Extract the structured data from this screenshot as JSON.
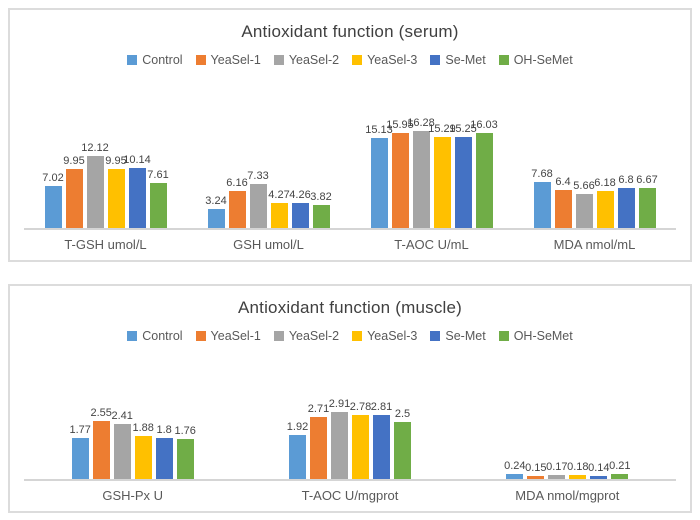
{
  "colors": {
    "series": [
      "#5B9BD5",
      "#ED7D31",
      "#A5A5A5",
      "#FFC000",
      "#4472C4",
      "#70AD47"
    ],
    "title_text": "#404040",
    "legend_text": "#595959",
    "axis_line": "#d5d5d5",
    "panel_border": "#dcdcdc"
  },
  "chart_data": [
    {
      "type": "bar",
      "title": "Antioxidant function (serum)",
      "categories": [
        "T-GSH umol/L",
        "GSH umol/L",
        "T-AOC U/mL",
        "MDA nmol/mL"
      ],
      "series": [
        {
          "name": "Control",
          "color": "#5B9BD5",
          "values": [
            7.02,
            3.24,
            15.13,
            7.68
          ]
        },
        {
          "name": "YeaSel-1",
          "color": "#ED7D31",
          "values": [
            9.95,
            6.16,
            15.95,
            6.4
          ]
        },
        {
          "name": "YeaSel-2",
          "color": "#A5A5A5",
          "values": [
            12.12,
            7.33,
            16.28,
            5.66
          ]
        },
        {
          "name": "YeaSel-3",
          "color": "#FFC000",
          "values": [
            9.95,
            4.27,
            15.29,
            6.18
          ]
        },
        {
          "name": "Se-Met",
          "color": "#4472C4",
          "values": [
            10.14,
            4.26,
            15.25,
            6.8
          ]
        },
        {
          "name": "OH-SeMet",
          "color": "#70AD47",
          "values": [
            7.61,
            3.82,
            16.03,
            6.67
          ]
        }
      ],
      "ylim": [
        0,
        16.8
      ],
      "grid": false,
      "y_axis_visible": false,
      "data_labels": true,
      "legend_position": "top"
    },
    {
      "type": "bar",
      "title": "Antioxidant function (muscle)",
      "categories": [
        "GSH-Px U",
        "T-AOC U/mgprot",
        "MDA nmol/mgprot"
      ],
      "series": [
        {
          "name": "Control",
          "color": "#5B9BD5",
          "values": [
            1.77,
            1.92,
            0.24
          ]
        },
        {
          "name": "YeaSel-1",
          "color": "#ED7D31",
          "values": [
            2.55,
            2.71,
            0.15
          ]
        },
        {
          "name": "YeaSel-2",
          "color": "#A5A5A5",
          "values": [
            2.41,
            2.91,
            0.17
          ]
        },
        {
          "name": "YeaSel-3",
          "color": "#FFC000",
          "values": [
            1.88,
            2.78,
            0.18
          ]
        },
        {
          "name": "Se-Met",
          "color": "#4472C4",
          "values": [
            1.8,
            2.81,
            0.14
          ]
        },
        {
          "name": "OH-SeMet",
          "color": "#70AD47",
          "values": [
            1.76,
            2.5,
            0.21
          ]
        }
      ],
      "ylim": [
        0,
        3.05
      ],
      "grid": false,
      "y_axis_visible": false,
      "data_labels": true,
      "legend_position": "top"
    }
  ]
}
